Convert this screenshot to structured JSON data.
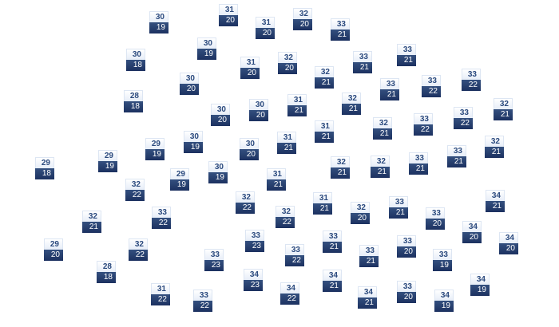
{
  "colors": {
    "high_text": "#2b4a7e",
    "low_bg": "#1c3160",
    "low_text": "#ffffff"
  },
  "markers": [
    {
      "high": "30",
      "low": "19"
    },
    {
      "high": "31",
      "low": "20"
    },
    {
      "high": "31",
      "low": "20"
    },
    {
      "high": "32",
      "low": "20"
    },
    {
      "high": "33",
      "low": "21"
    },
    {
      "high": "30",
      "low": "19"
    },
    {
      "high": "30",
      "low": "18"
    },
    {
      "high": "31",
      "low": "20"
    },
    {
      "high": "32",
      "low": "20"
    },
    {
      "high": "33",
      "low": "21"
    },
    {
      "high": "33",
      "low": "21"
    },
    {
      "high": "32",
      "low": "21"
    },
    {
      "high": "33",
      "low": "21"
    },
    {
      "high": "33",
      "low": "22"
    },
    {
      "high": "33",
      "low": "22"
    },
    {
      "high": "30",
      "low": "20"
    },
    {
      "high": "28",
      "low": "18"
    },
    {
      "high": "30",
      "low": "20"
    },
    {
      "high": "30",
      "low": "20"
    },
    {
      "high": "31",
      "low": "21"
    },
    {
      "high": "32",
      "low": "21"
    },
    {
      "high": "32",
      "low": "21"
    },
    {
      "high": "33",
      "low": "22"
    },
    {
      "high": "33",
      "low": "22"
    },
    {
      "high": "32",
      "low": "21"
    },
    {
      "high": "31",
      "low": "21"
    },
    {
      "high": "31",
      "low": "21"
    },
    {
      "high": "30",
      "low": "20"
    },
    {
      "high": "30",
      "low": "19"
    },
    {
      "high": "29",
      "low": "19"
    },
    {
      "high": "29",
      "low": "19"
    },
    {
      "high": "29",
      "low": "18"
    },
    {
      "high": "32",
      "low": "21"
    },
    {
      "high": "32",
      "low": "21"
    },
    {
      "high": "33",
      "low": "21"
    },
    {
      "high": "33",
      "low": "21"
    },
    {
      "high": "32",
      "low": "21"
    },
    {
      "high": "30",
      "low": "19"
    },
    {
      "high": "29",
      "low": "19"
    },
    {
      "high": "31",
      "low": "21"
    },
    {
      "high": "32",
      "low": "22"
    },
    {
      "high": "32",
      "low": "22"
    },
    {
      "high": "31",
      "low": "21"
    },
    {
      "high": "32",
      "low": "20"
    },
    {
      "high": "33",
      "low": "21"
    },
    {
      "high": "33",
      "low": "20"
    },
    {
      "high": "34",
      "low": "21"
    },
    {
      "high": "32",
      "low": "22"
    },
    {
      "high": "33",
      "low": "22"
    },
    {
      "high": "32",
      "low": "21"
    },
    {
      "high": "29",
      "low": "20"
    },
    {
      "high": "32",
      "low": "22"
    },
    {
      "high": "33",
      "low": "23"
    },
    {
      "high": "33",
      "low": "22"
    },
    {
      "high": "33",
      "low": "21"
    },
    {
      "high": "33",
      "low": "21"
    },
    {
      "high": "33",
      "low": "20"
    },
    {
      "high": "34",
      "low": "20"
    },
    {
      "high": "34",
      "low": "20"
    },
    {
      "high": "33",
      "low": "19"
    },
    {
      "high": "28",
      "low": "18"
    },
    {
      "high": "33",
      "low": "23"
    },
    {
      "high": "34",
      "low": "23"
    },
    {
      "high": "31",
      "low": "22"
    },
    {
      "high": "33",
      "low": "22"
    },
    {
      "high": "34",
      "low": "22"
    },
    {
      "high": "34",
      "low": "21"
    },
    {
      "high": "34",
      "low": "21"
    },
    {
      "high": "33",
      "low": "20"
    },
    {
      "high": "34",
      "low": "19"
    },
    {
      "high": "34",
      "low": "19"
    }
  ]
}
